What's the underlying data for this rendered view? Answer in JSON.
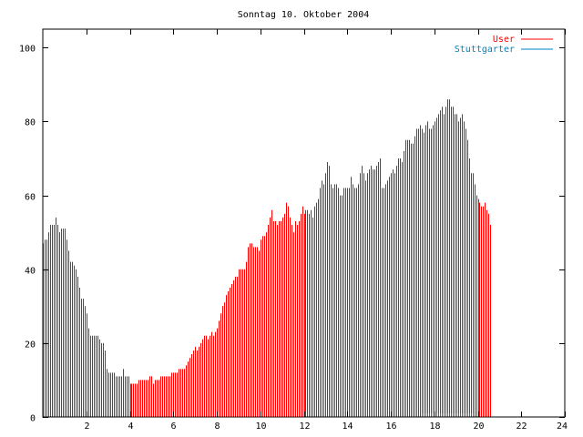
{
  "chart_data": {
    "type": "bar",
    "title": "Sonntag 10. Oktober 2004",
    "xlabel": "",
    "ylabel": "",
    "xlim": [
      0,
      24
    ],
    "ylim": [
      0,
      105
    ],
    "xticks": [
      2,
      4,
      6,
      8,
      10,
      12,
      14,
      16,
      18,
      20,
      22,
      24
    ],
    "yticks": [
      0,
      20,
      40,
      60,
      80,
      100
    ],
    "legend_position": "top-right",
    "grid": false,
    "series": [
      {
        "name": "User",
        "color": "#ff0000",
        "interval_minutes": 5,
        "values": [
          47,
          48,
          48,
          50,
          52,
          52,
          52,
          54,
          52,
          50,
          51,
          51,
          51,
          48,
          45,
          42,
          42,
          41,
          40,
          38,
          35,
          32,
          32,
          30,
          28,
          24,
          22,
          22,
          22,
          22,
          22,
          21,
          20,
          20,
          18,
          13,
          12,
          12,
          12,
          12,
          11,
          11,
          11,
          11,
          13,
          11,
          11,
          11,
          9,
          9,
          9,
          9,
          9,
          10,
          10,
          10,
          10,
          10,
          10,
          11,
          11,
          9,
          10,
          10,
          10,
          11,
          11,
          11,
          11,
          11,
          11,
          12,
          12,
          12,
          12,
          13,
          13,
          13,
          13,
          14,
          15,
          16,
          17,
          18,
          19,
          18,
          19,
          20,
          21,
          22,
          22,
          21,
          22,
          23,
          22,
          23,
          24,
          26,
          28,
          30,
          31,
          33,
          34,
          35,
          36,
          37,
          38,
          38,
          40,
          40,
          40,
          40,
          42,
          46,
          47,
          47,
          46,
          46,
          46,
          45,
          48,
          49,
          49,
          50,
          52,
          54,
          56,
          53,
          53,
          52,
          53,
          53,
          54,
          55,
          58,
          57,
          54,
          52,
          50,
          53,
          52,
          53,
          55,
          57,
          55,
          56,
          56,
          55,
          56,
          54,
          57,
          58,
          59,
          62,
          64,
          63,
          66,
          69,
          68,
          63,
          62,
          63,
          63,
          62,
          60,
          60,
          62,
          62,
          62,
          62,
          65,
          63,
          62,
          62,
          63,
          66,
          68,
          66,
          64,
          66,
          67,
          68,
          67,
          67,
          68,
          69,
          70,
          62,
          62,
          63,
          64,
          65,
          66,
          67,
          66,
          68,
          70,
          70,
          69,
          72,
          75,
          75,
          75,
          74,
          74,
          76,
          78,
          78,
          79,
          78,
          77,
          79,
          80,
          78,
          78,
          79,
          80,
          81,
          82,
          83,
          84,
          82,
          84,
          86,
          86,
          84,
          84,
          82,
          82,
          80,
          81,
          82,
          80,
          78,
          75,
          70,
          66,
          66,
          63,
          60,
          59,
          58,
          57,
          57,
          58,
          56,
          55,
          52
        ]
      },
      {
        "name": "Stuttgarter",
        "color": "#0080c0",
        "interval_minutes": 5,
        "values": [
          0,
          0,
          0,
          0,
          0,
          0,
          0,
          0,
          0,
          0,
          0,
          0,
          0,
          0,
          0,
          0,
          0,
          0,
          0,
          0,
          0,
          0,
          0,
          0,
          0,
          0,
          0,
          0,
          0,
          0,
          0,
          0,
          0,
          0,
          0,
          0,
          0,
          0,
          0,
          0,
          0,
          0,
          0,
          0,
          0,
          0,
          0,
          0,
          0,
          0,
          0,
          0,
          0,
          0,
          0,
          0,
          0,
          0,
          0,
          0,
          0,
          0,
          0,
          0,
          0,
          0,
          0,
          0,
          0,
          0,
          0,
          0,
          0,
          0,
          0,
          0,
          0,
          0,
          0,
          0,
          0,
          0,
          0,
          0,
          0,
          0,
          0,
          0,
          0,
          0,
          0,
          0,
          0,
          0,
          0,
          0,
          0,
          0,
          0,
          0,
          0,
          0,
          0,
          0,
          0,
          0,
          0,
          0,
          0,
          0,
          0,
          0,
          0,
          0,
          0,
          0,
          0,
          0,
          0,
          0,
          0,
          0,
          0,
          0,
          0,
          0,
          0,
          0,
          0,
          0,
          0,
          0,
          0,
          0,
          0,
          0,
          0,
          0,
          0,
          0,
          0,
          0,
          0,
          0,
          0,
          0,
          0,
          0,
          0,
          0,
          0,
          0,
          0,
          0,
          0,
          0,
          0,
          0,
          0,
          0,
          0,
          0,
          0,
          0,
          0,
          0,
          0,
          0,
          0,
          0,
          0,
          0,
          0,
          0,
          0,
          0,
          0,
          0,
          0,
          0,
          0,
          0,
          0,
          0,
          0,
          0,
          0,
          0,
          0,
          0,
          0,
          0,
          0,
          0,
          0,
          0,
          0,
          0,
          0,
          0,
          0,
          0,
          0,
          0,
          0,
          0,
          0,
          0,
          0,
          1,
          1,
          1,
          1,
          1,
          1,
          1,
          1,
          1,
          1,
          1,
          1,
          1,
          1,
          1,
          1,
          1,
          1,
          1,
          1,
          1,
          1,
          1,
          1,
          1,
          1,
          1,
          1,
          1,
          0,
          0,
          0,
          0,
          0,
          0,
          0,
          0,
          0,
          0,
          0,
          0,
          0,
          0,
          0,
          0
        ]
      }
    ]
  }
}
